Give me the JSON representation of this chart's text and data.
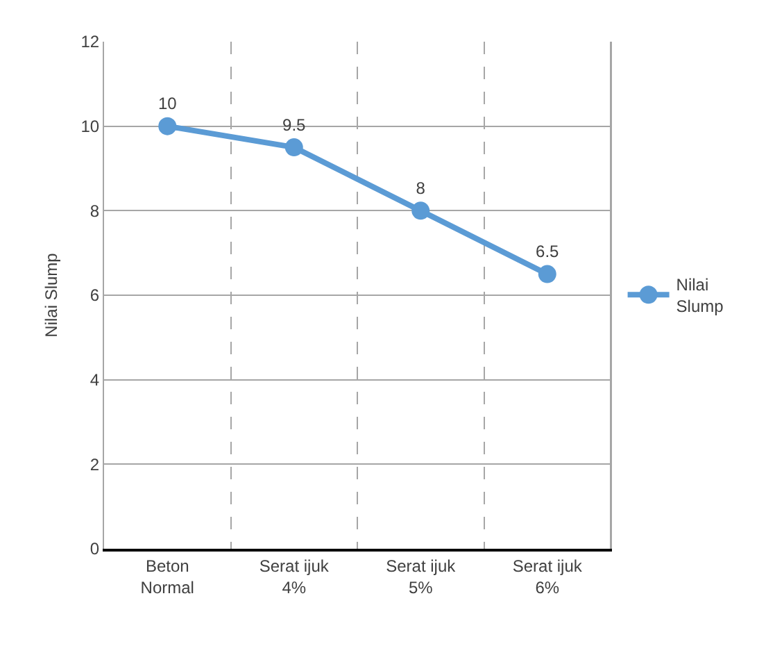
{
  "chart_data": {
    "type": "line",
    "ylabel": "Nilai Slump",
    "categories": [
      "Beton Normal",
      "Serat ijuk 4%",
      "Serat ijuk 5%",
      "Serat ijuk 6%"
    ],
    "series": [
      {
        "name": "Nilai Slump",
        "color": "#5b9bd5",
        "values": [
          10,
          9.5,
          8,
          6.5
        ]
      }
    ],
    "ylim": [
      0,
      12
    ],
    "yticks": [
      0,
      2,
      4,
      6,
      8,
      10,
      12
    ],
    "grid": true,
    "legend": "right",
    "data_labels": true,
    "marker": "circle",
    "line_style": "solid"
  }
}
